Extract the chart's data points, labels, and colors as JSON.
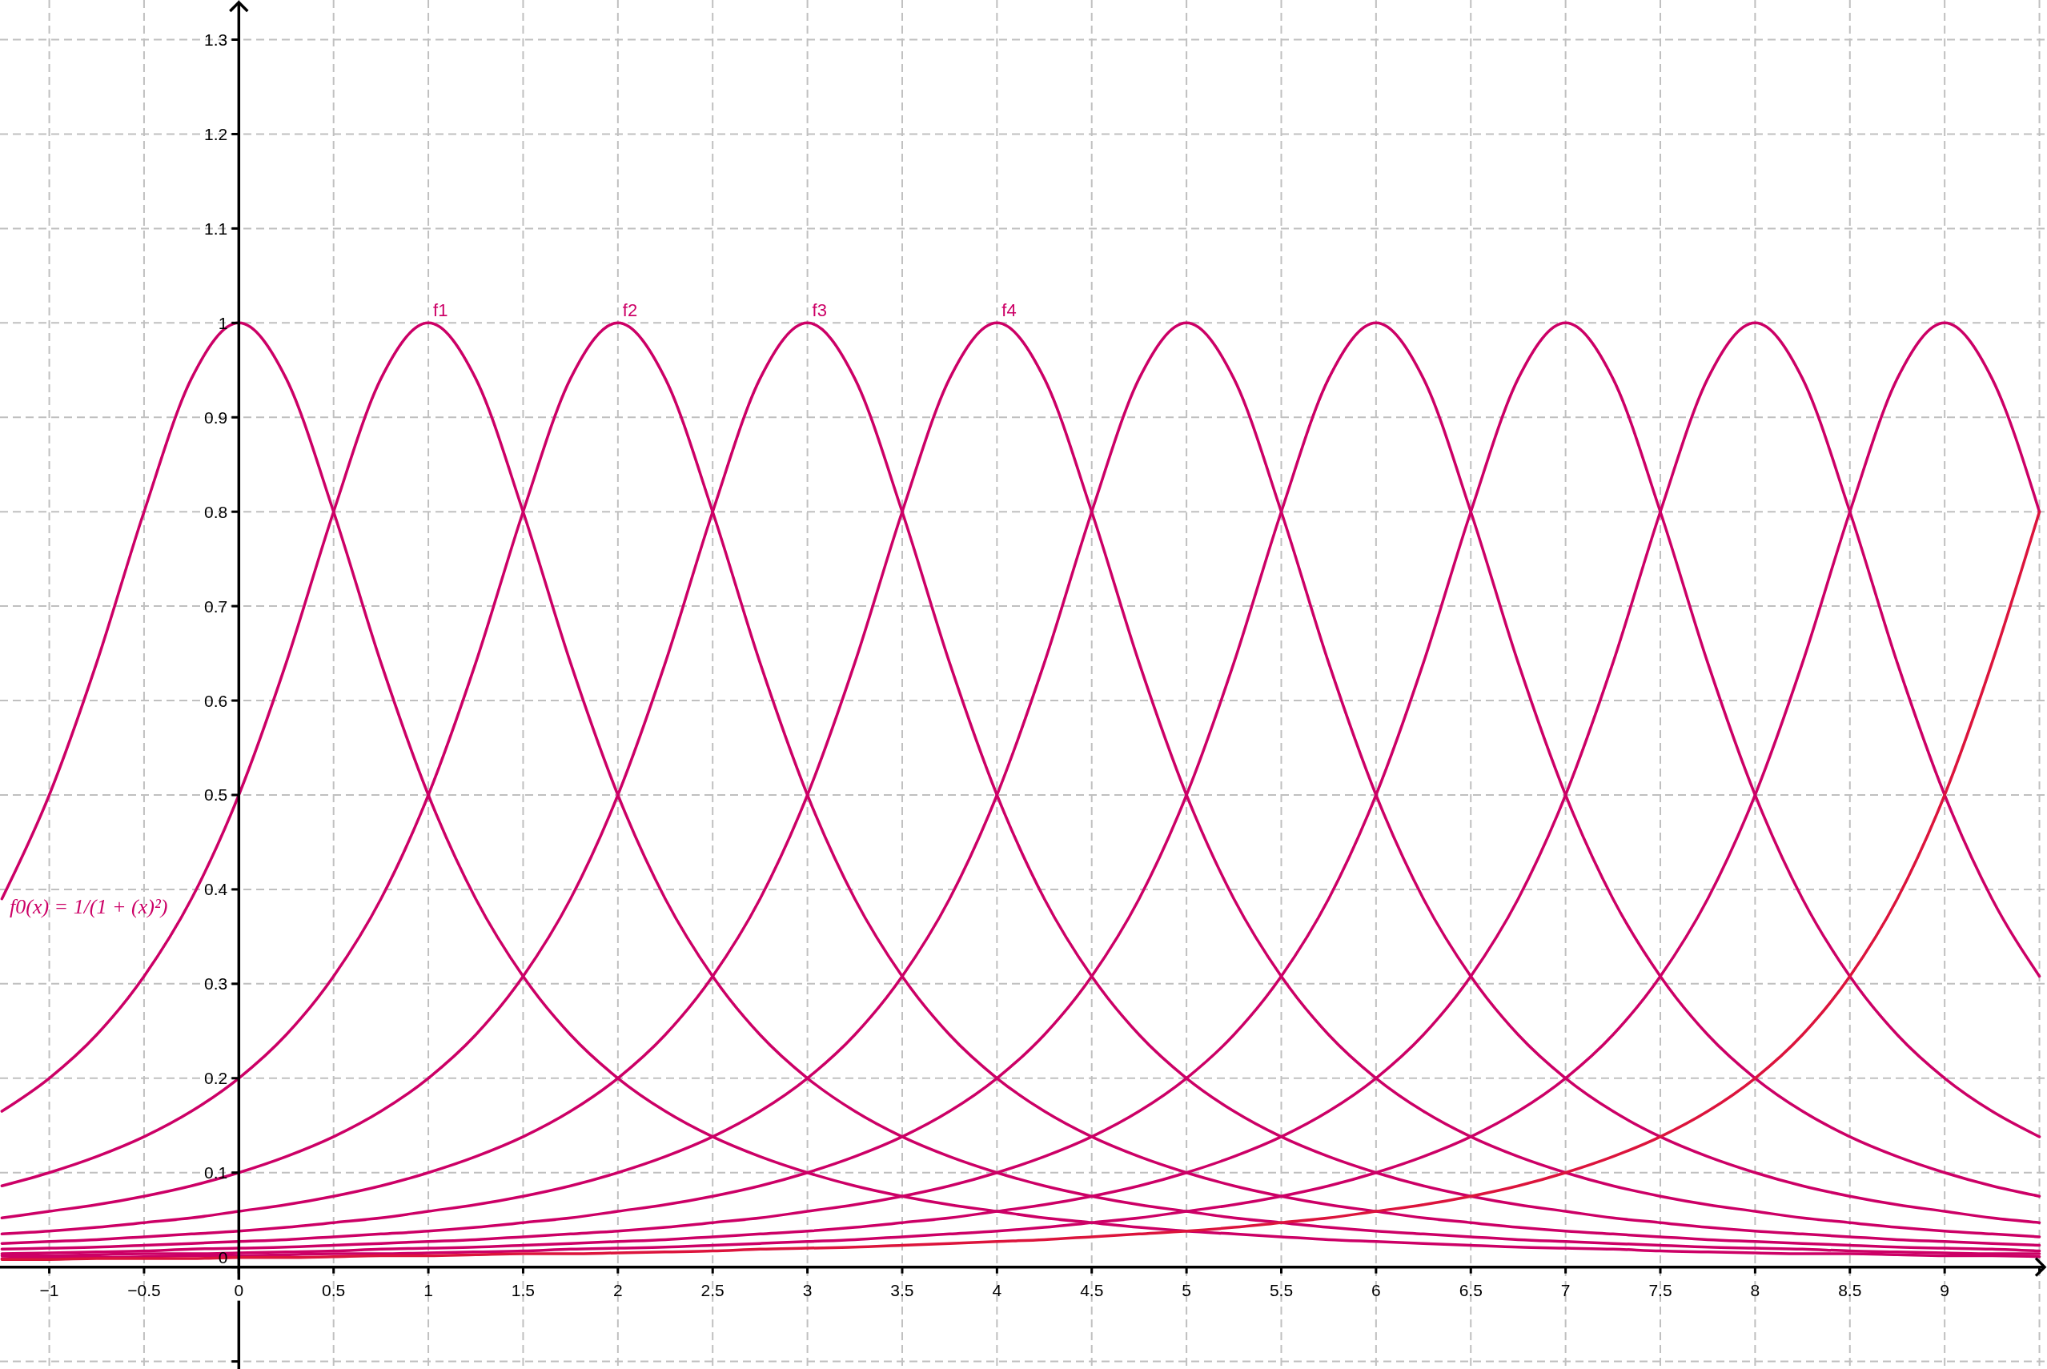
{
  "chart_data": {
    "type": "line",
    "x": [
      -1.25,
      -1,
      -0.75,
      -0.5,
      -0.25,
      0,
      0.25,
      0.5,
      0.75,
      1,
      1.25,
      1.5,
      1.75,
      2,
      2.25,
      2.5,
      2.75,
      3,
      3.25,
      3.5,
      3.75,
      4,
      4.25,
      4.5,
      4.75,
      5,
      5.25,
      5.5,
      5.75,
      6,
      6.25,
      6.5,
      6.75,
      7,
      7.25,
      7.5,
      7.75,
      8,
      8.25,
      8.5,
      8.75,
      9,
      9.25,
      9.5
    ],
    "series": [
      {
        "color": "#cc0066",
        "values": [
          0.39,
          0.5,
          0.64,
          0.8,
          0.941,
          1,
          0.941,
          0.8,
          0.64,
          0.5,
          0.39,
          0.308,
          0.246,
          0.2,
          0.165,
          0.138,
          0.117,
          0.1,
          0.086,
          0.075,
          0.066,
          0.059,
          0.052,
          0.047,
          0.042,
          0.038,
          0.035,
          0.032,
          0.029,
          0.027,
          0.025,
          0.023,
          0.021,
          0.02,
          0.019,
          0.017,
          0.016,
          0.015,
          0.014,
          0.014,
          0.013,
          0.012,
          0.012,
          0.011
        ]
      },
      {
        "name": "f1",
        "color": "#cc0066",
        "values": [
          0.165,
          0.2,
          0.246,
          0.308,
          0.39,
          0.5,
          0.64,
          0.8,
          0.941,
          1,
          0.941,
          0.8,
          0.64,
          0.5,
          0.39,
          0.308,
          0.246,
          0.2,
          0.165,
          0.138,
          0.117,
          0.1,
          0.086,
          0.075,
          0.066,
          0.059,
          0.052,
          0.047,
          0.042,
          0.038,
          0.035,
          0.032,
          0.029,
          0.027,
          0.025,
          0.023,
          0.021,
          0.02,
          0.019,
          0.017,
          0.016,
          0.015,
          0.014,
          0.014
        ]
      },
      {
        "name": "f2",
        "color": "#cc0066",
        "values": [
          0.086,
          0.1,
          0.117,
          0.138,
          0.165,
          0.2,
          0.246,
          0.308,
          0.39,
          0.5,
          0.64,
          0.8,
          0.941,
          1,
          0.941,
          0.8,
          0.64,
          0.5,
          0.39,
          0.308,
          0.246,
          0.2,
          0.165,
          0.138,
          0.117,
          0.1,
          0.086,
          0.075,
          0.066,
          0.059,
          0.052,
          0.047,
          0.042,
          0.038,
          0.035,
          0.032,
          0.029,
          0.027,
          0.025,
          0.023,
          0.021,
          0.02,
          0.019,
          0.017
        ]
      },
      {
        "name": "f3",
        "color": "#cc0066",
        "values": [
          0.052,
          0.059,
          0.066,
          0.075,
          0.086,
          0.1,
          0.117,
          0.138,
          0.165,
          0.2,
          0.246,
          0.308,
          0.39,
          0.5,
          0.64,
          0.8,
          0.941,
          1,
          0.941,
          0.8,
          0.64,
          0.5,
          0.39,
          0.308,
          0.246,
          0.2,
          0.165,
          0.138,
          0.117,
          0.1,
          0.086,
          0.075,
          0.066,
          0.059,
          0.052,
          0.047,
          0.042,
          0.038,
          0.035,
          0.032,
          0.029,
          0.027,
          0.025,
          0.023
        ]
      },
      {
        "name": "f4",
        "color": "#cc0066",
        "values": [
          0.035,
          0.038,
          0.042,
          0.047,
          0.052,
          0.059,
          0.066,
          0.075,
          0.086,
          0.1,
          0.117,
          0.138,
          0.165,
          0.2,
          0.246,
          0.308,
          0.39,
          0.5,
          0.64,
          0.8,
          0.941,
          1,
          0.941,
          0.8,
          0.64,
          0.5,
          0.39,
          0.308,
          0.246,
          0.2,
          0.165,
          0.138,
          0.117,
          0.1,
          0.086,
          0.075,
          0.066,
          0.059,
          0.052,
          0.047,
          0.042,
          0.038,
          0.035,
          0.032
        ]
      },
      {
        "color": "#cc0066",
        "values": [
          0.025,
          0.027,
          0.029,
          0.032,
          0.035,
          0.038,
          0.042,
          0.047,
          0.052,
          0.059,
          0.066,
          0.075,
          0.086,
          0.1,
          0.117,
          0.138,
          0.165,
          0.2,
          0.246,
          0.308,
          0.39,
          0.5,
          0.64,
          0.8,
          0.941,
          1,
          0.941,
          0.8,
          0.64,
          0.5,
          0.39,
          0.308,
          0.246,
          0.2,
          0.165,
          0.138,
          0.117,
          0.1,
          0.086,
          0.075,
          0.066,
          0.059,
          0.052,
          0.047
        ]
      },
      {
        "color": "#cc0066",
        "values": [
          0.019,
          0.02,
          0.021,
          0.023,
          0.025,
          0.027,
          0.029,
          0.032,
          0.035,
          0.038,
          0.042,
          0.047,
          0.052,
          0.059,
          0.066,
          0.075,
          0.086,
          0.1,
          0.117,
          0.138,
          0.165,
          0.2,
          0.246,
          0.308,
          0.39,
          0.5,
          0.64,
          0.8,
          0.941,
          1,
          0.941,
          0.8,
          0.64,
          0.5,
          0.39,
          0.308,
          0.246,
          0.2,
          0.165,
          0.138,
          0.117,
          0.1,
          0.086,
          0.075
        ]
      },
      {
        "color": "#cc0066",
        "values": [
          0.014,
          0.015,
          0.016,
          0.017,
          0.019,
          0.02,
          0.021,
          0.023,
          0.025,
          0.027,
          0.029,
          0.032,
          0.035,
          0.038,
          0.042,
          0.047,
          0.052,
          0.059,
          0.066,
          0.075,
          0.086,
          0.1,
          0.117,
          0.138,
          0.165,
          0.2,
          0.246,
          0.308,
          0.39,
          0.5,
          0.64,
          0.8,
          0.941,
          1,
          0.941,
          0.8,
          0.64,
          0.5,
          0.39,
          0.308,
          0.246,
          0.2,
          0.165,
          0.138
        ]
      },
      {
        "color": "#cc0066",
        "values": [
          0.012,
          0.012,
          0.013,
          0.014,
          0.014,
          0.015,
          0.016,
          0.017,
          0.019,
          0.02,
          0.021,
          0.023,
          0.025,
          0.027,
          0.029,
          0.032,
          0.035,
          0.038,
          0.042,
          0.047,
          0.052,
          0.059,
          0.066,
          0.075,
          0.086,
          0.1,
          0.117,
          0.138,
          0.165,
          0.2,
          0.246,
          0.308,
          0.39,
          0.5,
          0.64,
          0.8,
          0.941,
          1,
          0.941,
          0.8,
          0.64,
          0.5,
          0.39,
          0.308
        ]
      },
      {
        "color": "#cc0066",
        "values": [
          0.009,
          0.01,
          0.01,
          0.011,
          0.012,
          0.012,
          0.013,
          0.014,
          0.014,
          0.015,
          0.016,
          0.017,
          0.019,
          0.02,
          0.021,
          0.023,
          0.025,
          0.027,
          0.029,
          0.032,
          0.035,
          0.038,
          0.042,
          0.047,
          0.052,
          0.059,
          0.066,
          0.075,
          0.086,
          0.1,
          0.117,
          0.138,
          0.165,
          0.2,
          0.246,
          0.308,
          0.39,
          0.5,
          0.64,
          0.8,
          0.941,
          1,
          0.941,
          0.8
        ]
      },
      {
        "color": "#dc143c",
        "values": [
          0.008,
          0.008,
          0.009,
          0.009,
          0.009,
          0.01,
          0.01,
          0.011,
          0.012,
          0.012,
          0.013,
          0.014,
          0.014,
          0.015,
          0.016,
          0.017,
          0.019,
          0.02,
          0.021,
          0.023,
          0.025,
          0.027,
          0.029,
          0.032,
          0.035,
          0.038,
          0.042,
          0.047,
          0.052,
          0.059,
          0.066,
          0.075,
          0.086,
          0.1,
          0.117,
          0.138,
          0.165,
          0.2,
          0.246,
          0.308,
          0.39,
          0.5,
          0.64,
          0.8
        ]
      }
    ],
    "xlim": [
      -1.26,
      9.54
    ],
    "ylim": [
      -0.108,
      1.342
    ],
    "xticks": [
      {
        "value": -1,
        "label": "−1"
      },
      {
        "value": -0.5,
        "label": "−0.5"
      },
      0,
      0.5,
      1,
      1.5,
      2,
      2.5,
      3,
      3.5,
      4,
      4.5,
      5,
      5.5,
      6,
      6.5,
      7,
      7.5,
      8,
      8.5,
      9,
      {
        "value": 9.5,
        "label": null
      }
    ],
    "yticks": [
      {
        "value": -0.1,
        "label": null
      },
      0,
      0.1,
      0.2,
      0.3,
      0.4,
      0.5,
      0.6,
      0.7,
      0.8,
      0.9,
      1,
      1.1,
      1.2,
      1.3
    ],
    "grid": true,
    "annotations": [
      "f0(x) = 1/(1 + (x)²)"
    ]
  }
}
